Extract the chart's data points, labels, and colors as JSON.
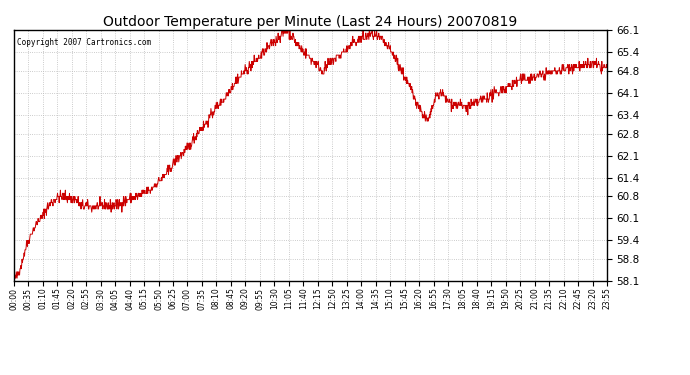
{
  "title": "Outdoor Temperature per Minute (Last 24 Hours) 20070819",
  "copyright_text": "Copyright 2007 Cartronics.com",
  "line_color": "#cc0000",
  "background_color": "#ffffff",
  "plot_bg_color": "#ffffff",
  "grid_color": "#bbbbbb",
  "ylim": [
    58.1,
    66.1
  ],
  "yticks": [
    58.1,
    58.8,
    59.4,
    60.1,
    60.8,
    61.4,
    62.1,
    62.8,
    63.4,
    64.1,
    64.8,
    65.4,
    66.1
  ],
  "xtick_labels": [
    "00:00",
    "00:35",
    "01:10",
    "01:45",
    "02:20",
    "02:55",
    "03:30",
    "04:05",
    "04:40",
    "05:15",
    "05:50",
    "06:25",
    "07:00",
    "07:35",
    "08:10",
    "08:45",
    "09:20",
    "09:55",
    "10:30",
    "11:05",
    "11:40",
    "12:15",
    "12:50",
    "13:25",
    "14:00",
    "14:35",
    "15:10",
    "15:45",
    "16:20",
    "16:55",
    "17:30",
    "18:05",
    "18:40",
    "19:15",
    "19:50",
    "20:25",
    "21:00",
    "21:35",
    "22:10",
    "22:45",
    "23:20",
    "23:55"
  ],
  "num_points": 1440,
  "seed": 42,
  "keypoints": [
    [
      0,
      58.1
    ],
    [
      0.25,
      58.5
    ],
    [
      0.5,
      59.2
    ],
    [
      0.75,
      59.7
    ],
    [
      1.0,
      60.0
    ],
    [
      1.25,
      60.3
    ],
    [
      1.5,
      60.6
    ],
    [
      1.75,
      60.75
    ],
    [
      2.0,
      60.8
    ],
    [
      2.25,
      60.75
    ],
    [
      2.5,
      60.7
    ],
    [
      2.75,
      60.5
    ],
    [
      3.0,
      60.5
    ],
    [
      3.25,
      60.45
    ],
    [
      3.5,
      60.5
    ],
    [
      3.75,
      60.5
    ],
    [
      4.0,
      60.5
    ],
    [
      4.25,
      60.55
    ],
    [
      4.5,
      60.65
    ],
    [
      4.75,
      60.75
    ],
    [
      5.0,
      60.8
    ],
    [
      5.25,
      60.9
    ],
    [
      5.5,
      61.0
    ],
    [
      5.75,
      61.2
    ],
    [
      6.0,
      61.4
    ],
    [
      6.25,
      61.6
    ],
    [
      6.5,
      61.9
    ],
    [
      6.75,
      62.1
    ],
    [
      7.0,
      62.3
    ],
    [
      7.25,
      62.6
    ],
    [
      7.5,
      62.9
    ],
    [
      7.75,
      63.1
    ],
    [
      8.0,
      63.4
    ],
    [
      8.25,
      63.7
    ],
    [
      8.5,
      63.9
    ],
    [
      8.75,
      64.2
    ],
    [
      9.0,
      64.5
    ],
    [
      9.25,
      64.7
    ],
    [
      9.5,
      64.9
    ],
    [
      9.75,
      65.1
    ],
    [
      10.0,
      65.3
    ],
    [
      10.25,
      65.5
    ],
    [
      10.5,
      65.7
    ],
    [
      10.75,
      65.9
    ],
    [
      11.0,
      66.05
    ],
    [
      11.08,
      66.1
    ],
    [
      11.25,
      65.9
    ],
    [
      11.5,
      65.6
    ],
    [
      11.75,
      65.4
    ],
    [
      12.0,
      65.2
    ],
    [
      12.25,
      65.0
    ],
    [
      12.5,
      64.8
    ],
    [
      12.75,
      65.0
    ],
    [
      13.0,
      65.2
    ],
    [
      13.25,
      65.35
    ],
    [
      13.5,
      65.5
    ],
    [
      13.75,
      65.7
    ],
    [
      14.0,
      65.8
    ],
    [
      14.25,
      65.9
    ],
    [
      14.5,
      65.95
    ],
    [
      14.75,
      65.85
    ],
    [
      15.0,
      65.7
    ],
    [
      15.25,
      65.4
    ],
    [
      15.5,
      65.1
    ],
    [
      15.75,
      64.7
    ],
    [
      16.0,
      64.3
    ],
    [
      16.25,
      63.9
    ],
    [
      16.5,
      63.5
    ],
    [
      16.75,
      63.2
    ],
    [
      17.0,
      63.8
    ],
    [
      17.25,
      64.1
    ],
    [
      17.5,
      63.9
    ],
    [
      17.75,
      63.75
    ],
    [
      18.0,
      63.7
    ],
    [
      18.25,
      63.65
    ],
    [
      18.5,
      63.7
    ],
    [
      18.75,
      63.8
    ],
    [
      19.0,
      63.9
    ],
    [
      19.25,
      64.0
    ],
    [
      19.5,
      64.1
    ],
    [
      19.75,
      64.2
    ],
    [
      20.0,
      64.3
    ],
    [
      20.25,
      64.4
    ],
    [
      20.5,
      64.5
    ],
    [
      20.75,
      64.55
    ],
    [
      21.0,
      64.6
    ],
    [
      21.25,
      64.65
    ],
    [
      21.5,
      64.7
    ],
    [
      21.75,
      64.75
    ],
    [
      22.0,
      64.8
    ],
    [
      22.25,
      64.85
    ],
    [
      22.5,
      64.9
    ],
    [
      22.75,
      64.95
    ],
    [
      23.0,
      64.9
    ],
    [
      23.25,
      65.0
    ],
    [
      23.5,
      65.0
    ],
    [
      23.75,
      64.9
    ],
    [
      24.0,
      64.9
    ]
  ]
}
